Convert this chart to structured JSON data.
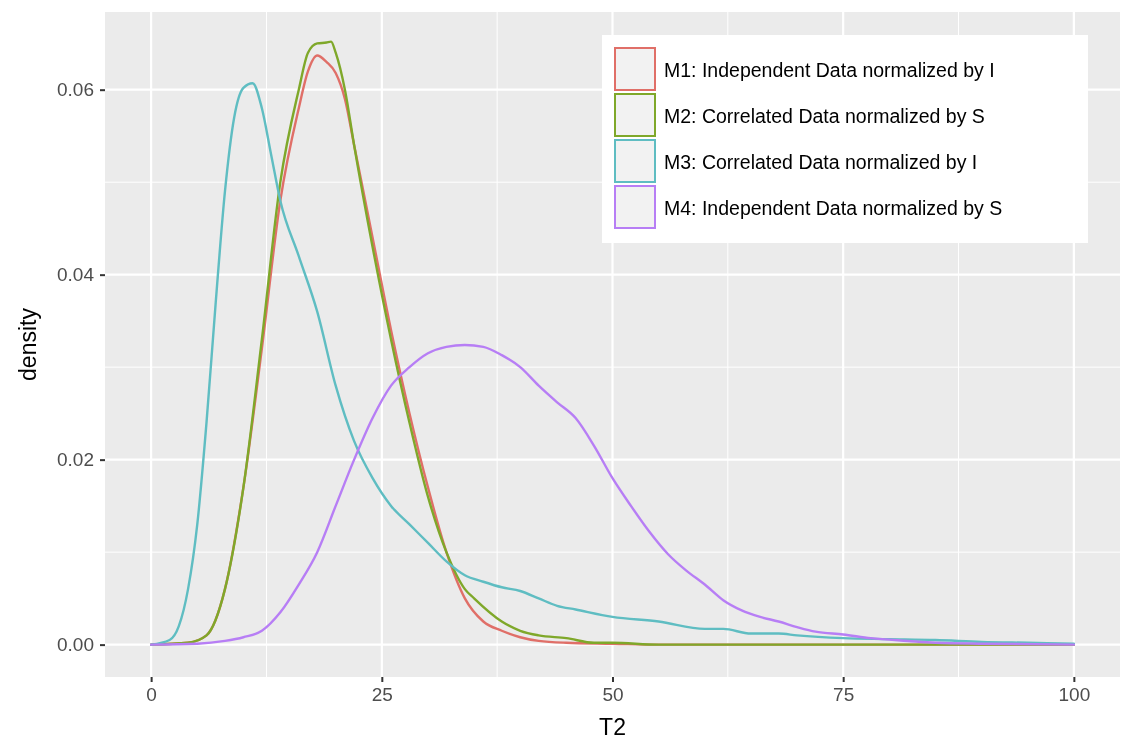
{
  "chart_data": {
    "type": "line",
    "xlabel": "T2",
    "ylabel": "density",
    "xlim": [
      -5,
      105
    ],
    "ylim": [
      -0.0035,
      0.0684
    ],
    "xticks": [
      0,
      25,
      50,
      75,
      100
    ],
    "yticks": [
      {
        "value": 0,
        "label": "0.00"
      },
      {
        "value": 0.02,
        "label": "0.02"
      },
      {
        "value": 0.04,
        "label": "0.04"
      },
      {
        "value": 0.06,
        "label": "0.06"
      }
    ],
    "grid": true,
    "legend": "top right",
    "marker": "none",
    "line_style": "solid",
    "series": [
      {
        "name": "M1: Independent Data normalized by I",
        "color": "#e06f68",
        "x": [
          0,
          4,
          6,
          8,
          10,
          12,
          14,
          16,
          17,
          18,
          19,
          20,
          21,
          22,
          24,
          26,
          28,
          30,
          32,
          34,
          36,
          38,
          40,
          42,
          45,
          50,
          55,
          100
        ],
        "values": [
          0,
          0.0002,
          0.001,
          0.006,
          0.017,
          0.032,
          0.048,
          0.058,
          0.062,
          0.0637,
          0.063,
          0.0618,
          0.059,
          0.054,
          0.044,
          0.034,
          0.025,
          0.017,
          0.01,
          0.005,
          0.0025,
          0.0015,
          0.0008,
          0.0004,
          0.0002,
          0.0001,
          0,
          0
        ]
      },
      {
        "name": "M2: Correlated Data normalized by S",
        "color": "#7fa82a",
        "x": [
          0,
          4,
          6,
          8,
          10,
          12,
          14,
          16,
          17,
          18,
          19,
          19.5,
          20,
          21,
          22,
          24,
          26,
          28,
          30,
          32,
          34,
          35,
          38,
          40,
          42,
          45,
          48,
          50,
          55,
          100
        ],
        "values": [
          0,
          0.0002,
          0.001,
          0.006,
          0.017,
          0.033,
          0.05,
          0.06,
          0.064,
          0.065,
          0.0651,
          0.0652,
          0.064,
          0.06,
          0.054,
          0.043,
          0.033,
          0.024,
          0.016,
          0.01,
          0.006,
          0.005,
          0.0025,
          0.0015,
          0.001,
          0.0007,
          0.0002,
          0.0002,
          0,
          0
        ]
      },
      {
        "name": "M3: Correlated Data normalized by I",
        "color": "#5fbdc2",
        "x": [
          0,
          2,
          3,
          4,
          5,
          6,
          7,
          8,
          9,
          10,
          11,
          12,
          13,
          14,
          16,
          18,
          20,
          22,
          24,
          26,
          28,
          30,
          32,
          34,
          36,
          38,
          40,
          42,
          44,
          46,
          50,
          55,
          60,
          62,
          65,
          68,
          70,
          75,
          80,
          85,
          90,
          95,
          100
        ],
        "values": [
          0,
          0.0005,
          0.002,
          0.006,
          0.013,
          0.024,
          0.037,
          0.049,
          0.057,
          0.0602,
          0.0607,
          0.058,
          0.053,
          0.048,
          0.042,
          0.036,
          0.028,
          0.022,
          0.018,
          0.015,
          0.013,
          0.011,
          0.009,
          0.0075,
          0.0068,
          0.0062,
          0.0058,
          0.005,
          0.0042,
          0.0038,
          0.003,
          0.0025,
          0.0017,
          0.0017,
          0.0012,
          0.0012,
          0.001,
          0.0007,
          0.0006,
          0.0005,
          0.0003,
          0.0002,
          0.0001
        ]
      },
      {
        "name": "M4: Independent Data normalized by S",
        "color": "#b77ef5",
        "x": [
          0,
          5,
          8,
          10,
          12,
          14,
          16,
          18,
          20,
          22,
          24,
          26,
          28,
          30,
          32,
          34,
          36,
          38,
          40,
          42,
          44,
          46,
          48,
          50,
          52,
          54,
          56,
          58,
          60,
          62,
          64,
          66,
          68,
          70,
          72,
          75,
          78,
          82,
          85,
          90,
          100
        ],
        "values": [
          0,
          0.0001,
          0.0004,
          0.0008,
          0.0015,
          0.0035,
          0.0065,
          0.01,
          0.015,
          0.02,
          0.0245,
          0.028,
          0.03,
          0.0315,
          0.0322,
          0.0324,
          0.0322,
          0.0313,
          0.03,
          0.028,
          0.0262,
          0.0245,
          0.0215,
          0.018,
          0.015,
          0.0122,
          0.0098,
          0.008,
          0.0065,
          0.0048,
          0.0037,
          0.003,
          0.0025,
          0.0019,
          0.0014,
          0.0011,
          0.0007,
          0.0004,
          0.0002,
          0.0001,
          0
        ]
      }
    ]
  }
}
